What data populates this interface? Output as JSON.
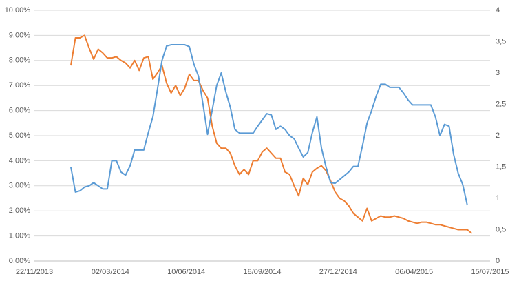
{
  "chart_data": {
    "type": "line",
    "x": [
      "2014-01-09",
      "2014-01-15",
      "2014-01-21",
      "2014-01-27",
      "2014-02-02",
      "2014-02-08",
      "2014-02-14",
      "2014-02-20",
      "2014-02-26",
      "2014-03-04",
      "2014-03-10",
      "2014-03-16",
      "2014-03-22",
      "2014-03-28",
      "2014-04-03",
      "2014-04-09",
      "2014-04-15",
      "2014-04-21",
      "2014-04-27",
      "2014-05-03",
      "2014-05-09",
      "2014-05-15",
      "2014-05-21",
      "2014-05-27",
      "2014-06-02",
      "2014-06-08",
      "2014-06-14",
      "2014-06-20",
      "2014-06-26",
      "2014-07-02",
      "2014-07-08",
      "2014-07-14",
      "2014-07-20",
      "2014-07-26",
      "2014-08-01",
      "2014-08-07",
      "2014-08-13",
      "2014-08-19",
      "2014-08-25",
      "2014-08-31",
      "2014-09-06",
      "2014-09-12",
      "2014-09-18",
      "2014-09-24",
      "2014-09-30",
      "2014-10-06",
      "2014-10-12",
      "2014-10-18",
      "2014-10-24",
      "2014-10-30",
      "2014-11-05",
      "2014-11-11",
      "2014-11-17",
      "2014-11-23",
      "2014-11-29",
      "2014-12-05",
      "2014-12-11",
      "2014-12-17",
      "2014-12-23",
      "2014-12-29",
      "2015-01-04",
      "2015-01-10",
      "2015-01-16",
      "2015-01-22",
      "2015-01-28",
      "2015-02-03",
      "2015-02-09",
      "2015-02-15",
      "2015-02-21",
      "2015-02-27",
      "2015-03-05",
      "2015-03-11",
      "2015-03-17",
      "2015-03-23",
      "2015-03-29",
      "2015-04-04",
      "2015-04-10",
      "2015-04-16",
      "2015-04-22",
      "2015-04-28",
      "2015-05-04",
      "2015-05-10",
      "2015-05-16",
      "2015-05-22",
      "2015-05-28",
      "2015-06-03",
      "2015-06-09",
      "2015-06-15",
      "2015-06-21"
    ],
    "series": [
      {
        "color": "#ed7d31",
        "values": [
          7.8,
          8.9,
          8.9,
          9.0,
          8.5,
          8.05,
          8.45,
          8.3,
          8.1,
          8.1,
          8.15,
          8.0,
          7.9,
          7.7,
          8.0,
          7.6,
          8.1,
          8.15,
          7.25,
          7.5,
          7.8,
          7.1,
          6.7,
          7.0,
          6.6,
          6.9,
          7.45,
          7.2,
          7.2,
          6.8,
          6.5,
          5.4,
          4.7,
          4.5,
          4.5,
          4.3,
          3.8,
          3.45,
          3.65,
          3.45,
          4.0,
          4.0,
          4.35,
          4.5,
          4.3,
          4.1,
          4.1,
          3.55,
          3.45,
          3.0,
          2.6,
          3.3,
          3.05,
          3.55,
          3.7,
          3.8,
          3.6,
          3.2,
          2.75,
          2.5,
          2.4,
          2.2,
          1.9,
          1.75,
          1.6,
          2.1,
          1.6,
          1.7,
          1.8,
          1.75,
          1.75,
          1.8,
          1.75,
          1.7,
          1.6,
          1.55,
          1.5,
          1.55,
          1.55,
          1.5,
          1.45,
          1.45,
          1.4,
          1.35,
          1.3,
          1.25,
          1.25,
          1.25,
          1.1
        ]
      },
      {
        "color": "#5b9bd5",
        "axis": "y2",
        "values": [
          1.5,
          1.1,
          1.12,
          1.18,
          1.2,
          1.25,
          1.2,
          1.15,
          1.15,
          1.6,
          1.6,
          1.42,
          1.37,
          1.52,
          1.77,
          1.77,
          1.77,
          2.05,
          2.3,
          2.74,
          3.2,
          3.43,
          3.45,
          3.45,
          3.45,
          3.45,
          3.42,
          3.14,
          2.95,
          2.5,
          2.02,
          2.4,
          2.8,
          3.0,
          2.7,
          2.45,
          2.1,
          2.04,
          2.04,
          2.04,
          2.04,
          2.15,
          2.25,
          2.35,
          2.33,
          2.1,
          2.15,
          2.1,
          2.0,
          1.95,
          1.8,
          1.66,
          1.73,
          2.05,
          2.3,
          1.8,
          1.5,
          1.25,
          1.24,
          1.3,
          1.36,
          1.42,
          1.51,
          1.51,
          1.84,
          2.2,
          2.4,
          2.63,
          2.82,
          2.82,
          2.77,
          2.77,
          2.77,
          2.68,
          2.57,
          2.49,
          2.49,
          2.49,
          2.49,
          2.49,
          2.3,
          2.0,
          2.18,
          2.15,
          1.7,
          1.4,
          1.22,
          0.89,
          null
        ]
      }
    ],
    "xlim": [
      "2013-11-22",
      "2015-07-15"
    ],
    "xticks": [
      {
        "value": "2013-11-22",
        "label": "22/11/2013"
      },
      {
        "value": "2014-03-02",
        "label": "02/03/2014"
      },
      {
        "value": "2014-06-10",
        "label": "10/06/2014"
      },
      {
        "value": "2014-09-18",
        "label": "18/09/2014"
      },
      {
        "value": "2014-12-27",
        "label": "27/12/2014"
      },
      {
        "value": "2015-04-06",
        "label": "06/04/2015"
      },
      {
        "value": "2015-07-15",
        "label": "15/07/2015"
      }
    ],
    "ylim": [
      0,
      10
    ],
    "yticks": [
      {
        "value": 0,
        "label": "0,00%"
      },
      {
        "value": 1,
        "label": "1,00%"
      },
      {
        "value": 2,
        "label": "2,00%"
      },
      {
        "value": 3,
        "label": "3,00%"
      },
      {
        "value": 4,
        "label": "4,00%"
      },
      {
        "value": 5,
        "label": "5,00%"
      },
      {
        "value": 6,
        "label": "6,00%"
      },
      {
        "value": 7,
        "label": "7,00%"
      },
      {
        "value": 8,
        "label": "8,00%"
      },
      {
        "value": 9,
        "label": "9,00%"
      },
      {
        "value": 10,
        "label": "10,00%"
      }
    ],
    "y2lim": [
      0,
      4
    ],
    "y2ticks": [
      0,
      {
        "value": 0.5,
        "label": "0,5"
      },
      1,
      {
        "value": 1.5,
        "label": "1,5"
      },
      2,
      {
        "value": 2.5,
        "label": "2,5"
      },
      3,
      {
        "value": 3.5,
        "label": "3,5"
      },
      4
    ],
    "grid": true
  }
}
